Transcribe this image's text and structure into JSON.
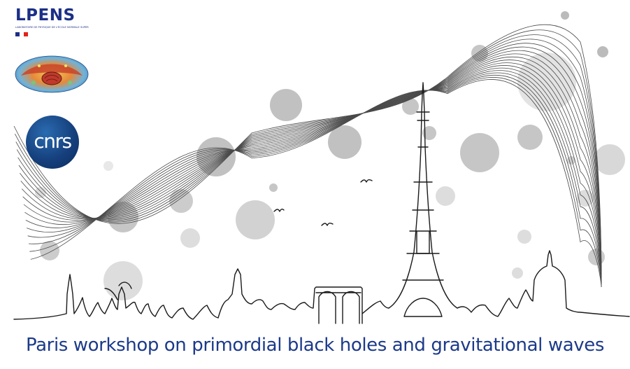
{
  "logos": {
    "lpens": {
      "name": "LPENS",
      "subtitle": "LABORATOIRE DE PHYSIQUE DE L'ÉCOLE NORMALE SUPÉRIEURE",
      "flag_colors": [
        "#1c2f86",
        "#ffffff",
        "#e2231a"
      ]
    },
    "cmb_map": {
      "icon": "cmb-sky-map"
    },
    "cnrs": {
      "name": "cnrs"
    }
  },
  "illustration": {
    "description_icon": "eiffel-tower-gravitational-waves",
    "wave_color": "#4a4a4a",
    "blob_color": "#9a9a9a"
  },
  "footer": {
    "title": "Paris workshop on primordial black holes and gravitational waves"
  },
  "colors": {
    "title": "#1c3a8a",
    "line_art": "#1a1a1a"
  }
}
